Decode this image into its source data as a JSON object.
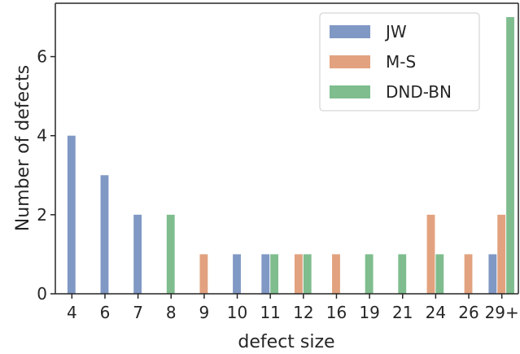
{
  "chart_data": {
    "type": "bar",
    "xlabel": "defect size",
    "ylabel": "Number of defects",
    "categories": [
      "4",
      "6",
      "7",
      "8",
      "9",
      "10",
      "11",
      "12",
      "16",
      "19",
      "21",
      "24",
      "26",
      "29+"
    ],
    "series": [
      {
        "name": "JW",
        "color": "#8098c4",
        "values": [
          4,
          3,
          2,
          null,
          null,
          1,
          1,
          null,
          null,
          null,
          null,
          null,
          null,
          1
        ]
      },
      {
        "name": "M-S",
        "color": "#e2a27f",
        "values": [
          null,
          null,
          null,
          null,
          1,
          null,
          null,
          1,
          1,
          null,
          null,
          2,
          1,
          2
        ]
      },
      {
        "name": "DND-BN",
        "color": "#7fbd8e",
        "values": [
          null,
          null,
          null,
          2,
          null,
          null,
          1,
          1,
          null,
          1,
          1,
          1,
          null,
          7
        ]
      }
    ],
    "ylim": [
      0,
      7.35
    ],
    "yticks": [
      0,
      2,
      4,
      6
    ],
    "grid": false,
    "legend_position": "top-right"
  }
}
